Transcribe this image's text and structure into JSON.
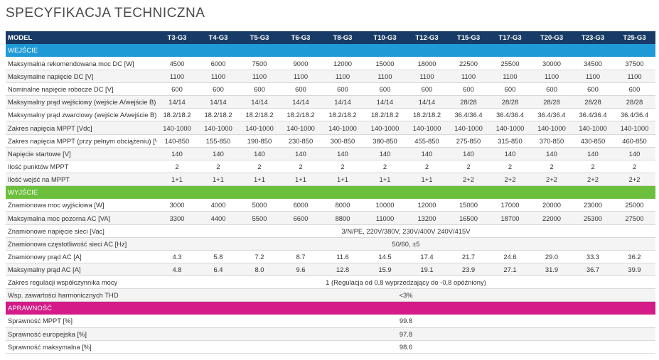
{
  "title": "SPECYFIKACJA TECHNICZNA",
  "header": {
    "label": "MODEL",
    "models": [
      "T3-G3",
      "T4-G3",
      "T5-G3",
      "T6-G3",
      "T8-G3",
      "T10-G3",
      "T12-G3",
      "T15-G3",
      "T17-G3",
      "T20-G3",
      "T23-G3",
      "T25-G3"
    ]
  },
  "sections": {
    "input": "WEJŚCIE",
    "output": "WYJŚCIE",
    "efficiency": "APRAWNOŚĆ"
  },
  "colors": {
    "header": "#173b66",
    "input": "#1f9ad6",
    "output": "#6cbf3c",
    "efficiency": "#d41b87"
  },
  "input_rows": [
    {
      "label": "Maksymalna rekomendowana moc DC [W]",
      "values": [
        "4500",
        "6000",
        "7500",
        "9000",
        "12000",
        "15000",
        "18000",
        "22500",
        "25500",
        "30000",
        "34500",
        "37500"
      ]
    },
    {
      "label": "Maksymalne napięcie DC [V]",
      "values": [
        "1100",
        "1100",
        "1100",
        "1100",
        "1100",
        "1100",
        "1100",
        "1100",
        "1100",
        "1100",
        "1100",
        "1100"
      ]
    },
    {
      "label": "Nominalne napięcie robocze DC [V]",
      "values": [
        "600",
        "600",
        "600",
        "600",
        "600",
        "600",
        "600",
        "600",
        "600",
        "600",
        "600",
        "600"
      ]
    },
    {
      "label": "Maksymalny prąd wejściowy (wejście A/wejście B) [A]",
      "values": [
        "14/14",
        "14/14",
        "14/14",
        "14/14",
        "14/14",
        "14/14",
        "14/14",
        "28/28",
        "28/28",
        "28/28",
        "28/28",
        "28/28"
      ]
    },
    {
      "label": "Maksymalny prąd zwarciowy (wejście A/wejście B) [A]",
      "values": [
        "18.2/18.2",
        "18.2/18.2",
        "18.2/18.2",
        "18.2/18.2",
        "18.2/18.2",
        "18.2/18.2",
        "18.2/18.2",
        "36.4/36.4",
        "36.4/36.4",
        "36.4/36.4",
        "36.4/36.4",
        "36.4/36.4"
      ]
    },
    {
      "label": "Zakres napięcia MPPT [Vdc]",
      "values": [
        "140-1000",
        "140-1000",
        "140-1000",
        "140-1000",
        "140-1000",
        "140-1000",
        "140-1000",
        "140-1000",
        "140-1000",
        "140-1000",
        "140-1000",
        "140-1000"
      ]
    },
    {
      "label": "Zakres napięcia MPPT (przy pełnym obciążeniu) [Vdc]",
      "values": [
        "140-850",
        "155-850",
        "190-850",
        "230-850",
        "300-850",
        "380-850",
        "455-850",
        "275-850",
        "315-850",
        "370-850",
        "430-850",
        "460-850"
      ]
    },
    {
      "label": "Napięcie startowe [V]",
      "values": [
        "140",
        "140",
        "140",
        "140",
        "140",
        "140",
        "140",
        "140",
        "140",
        "140",
        "140",
        "140"
      ]
    },
    {
      "label": "Ilość punktów MPPT",
      "values": [
        "2",
        "2",
        "2",
        "2",
        "2",
        "2",
        "2",
        "2",
        "2",
        "2",
        "2",
        "2"
      ]
    },
    {
      "label": "Ilość wejść na MPPT",
      "values": [
        "1+1",
        "1+1",
        "1+1",
        "1+1",
        "1+1",
        "1+1",
        "1+1",
        "2+2",
        "2+2",
        "2+2",
        "2+2",
        "2+2"
      ]
    }
  ],
  "output_rows": [
    {
      "label": "Znamionowa moc wyjściowa [W]",
      "values": [
        "3000",
        "4000",
        "5000",
        "6000",
        "8000",
        "10000",
        "12000",
        "15000",
        "17000",
        "20000",
        "23000",
        "25000"
      ]
    },
    {
      "label": "Maksymalna moc pozorna AC [VA]",
      "values": [
        "3300",
        "4400",
        "5500",
        "6600",
        "8800",
        "11000",
        "13200",
        "16500",
        "18700",
        "22000",
        "25300",
        "27500"
      ]
    },
    {
      "label": "Znamionowe napięcie sieci [Vac]",
      "span": "3/N/PE, 220V/380V, 230V/400V 240V/415V"
    },
    {
      "label": "Znamionowa częstotliwość sieci AC [Hz]",
      "span": "50/60, ±5"
    },
    {
      "label": "Znamionowy prąd AC [A]",
      "values": [
        "4.3",
        "5.8",
        "7.2",
        "8.7",
        "11.6",
        "14.5",
        "17.4",
        "21.7",
        "24.6",
        "29.0",
        "33.3",
        "36.2"
      ]
    },
    {
      "label": "Maksymalny prąd AC [A]",
      "values": [
        "4.8",
        "6.4",
        "8.0",
        "9.6",
        "12.8",
        "15.9",
        "19.1",
        "23.9",
        "27.1",
        "31.9",
        "36.7",
        "39.9"
      ]
    },
    {
      "label": "Zakres regulacji współczynnika mocy",
      "span": "1 (Regulacja od 0,8 wyprzedzający do -0,8 opóźniony)"
    },
    {
      "label": "Wsp. zawartości harmonicznych THD",
      "span": "<3%"
    }
  ],
  "efficiency_rows": [
    {
      "label": "Sprawność MPPT [%]",
      "span": "99.8"
    },
    {
      "label": "Sprawność europejska [%]",
      "span": "97.8"
    },
    {
      "label": "Sprawność maksymalna [%]",
      "span": "98.6"
    }
  ]
}
